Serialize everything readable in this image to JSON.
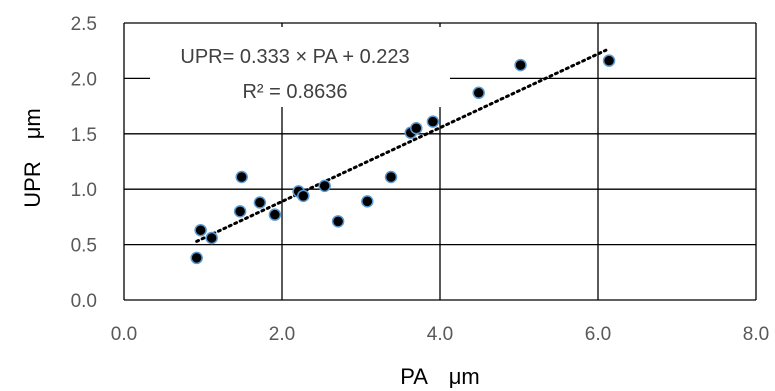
{
  "chart_data": {
    "type": "scatter",
    "xlabel": "PA　μm",
    "ylabel": "UPR　μm",
    "xlim": [
      0,
      8
    ],
    "ylim": [
      0,
      2.5
    ],
    "x_ticks": [
      "0.0",
      "2.0",
      "4.0",
      "6.0",
      "8.0"
    ],
    "y_ticks": [
      "0.0",
      "0.5",
      "1.0",
      "1.5",
      "2.0",
      "2.5"
    ],
    "grid": true,
    "annotations": [
      "UPR= 0.333 × PA + 0.223",
      "R² = 0.8636"
    ],
    "trendline": {
      "type": "linear",
      "slope": 0.333,
      "intercept": 0.223,
      "x_range": [
        0.92,
        6.1
      ]
    },
    "series": [
      {
        "points": [
          {
            "x": 0.92,
            "y": 0.38
          },
          {
            "x": 0.97,
            "y": 0.63
          },
          {
            "x": 1.11,
            "y": 0.56
          },
          {
            "x": 1.47,
            "y": 0.8
          },
          {
            "x": 1.49,
            "y": 1.11
          },
          {
            "x": 1.72,
            "y": 0.88
          },
          {
            "x": 1.91,
            "y": 0.77
          },
          {
            "x": 2.21,
            "y": 0.98
          },
          {
            "x": 2.27,
            "y": 0.94
          },
          {
            "x": 2.54,
            "y": 1.03
          },
          {
            "x": 2.71,
            "y": 0.71
          },
          {
            "x": 3.08,
            "y": 0.89
          },
          {
            "x": 3.38,
            "y": 1.11
          },
          {
            "x": 3.63,
            "y": 1.51
          },
          {
            "x": 3.7,
            "y": 1.55
          },
          {
            "x": 3.91,
            "y": 1.61
          },
          {
            "x": 4.49,
            "y": 1.87
          },
          {
            "x": 5.02,
            "y": 2.12
          },
          {
            "x": 6.14,
            "y": 2.16
          }
        ]
      }
    ],
    "colors": {
      "marker_fill": "#000000",
      "marker_edge": "#5b9bd5",
      "trendline": "#000000",
      "grid": "#000000"
    }
  }
}
